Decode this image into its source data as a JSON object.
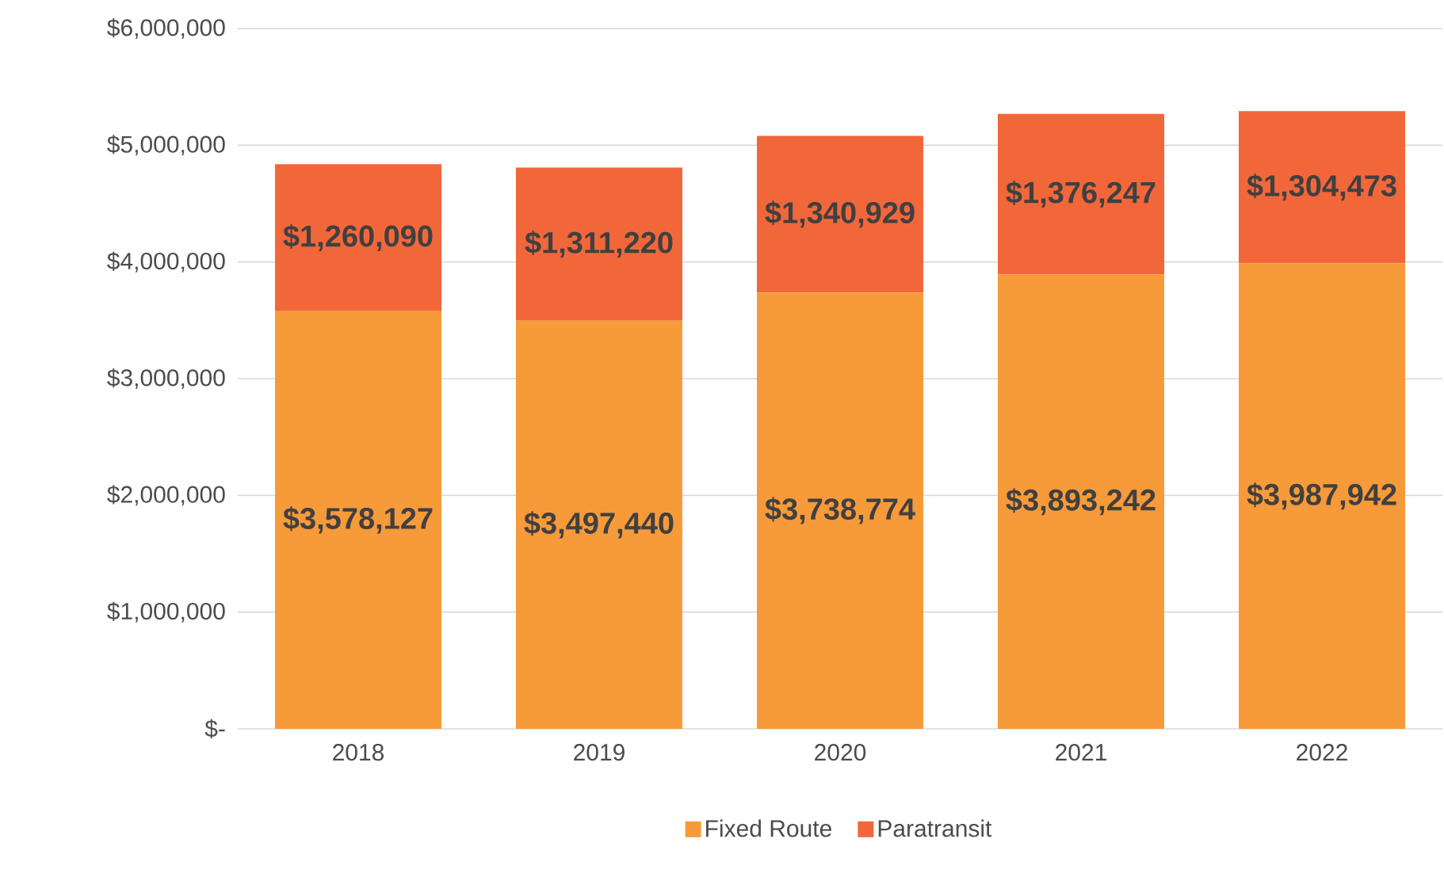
{
  "chart_data": {
    "type": "bar",
    "stacked": true,
    "categories": [
      "2018",
      "2019",
      "2020",
      "2021",
      "2022"
    ],
    "series": [
      {
        "name": "Fixed Route",
        "color": "#f79a3a",
        "values": [
          3578127,
          3497440,
          3738774,
          3893242,
          3987942
        ],
        "value_labels": [
          "$3,578,127",
          "$3,497,440",
          "$3,738,774",
          "$3,893,242",
          "$3,987,942"
        ]
      },
      {
        "name": "Paratransit",
        "color": "#f2673a",
        "values": [
          1260090,
          1311220,
          1340929,
          1376247,
          1304473
        ],
        "value_labels": [
          "$1,260,090",
          "$1,311,220",
          "$1,340,929",
          "$1,376,247",
          "$1,304,473"
        ]
      }
    ],
    "ylim": [
      0,
      6000000
    ],
    "yticks": [
      {
        "value": 0,
        "label": "$-"
      },
      {
        "value": 1000000,
        "label": "$1,000,000"
      },
      {
        "value": 2000000,
        "label": "$2,000,000"
      },
      {
        "value": 3000000,
        "label": "$3,000,000"
      },
      {
        "value": 4000000,
        "label": "$4,000,000"
      },
      {
        "value": 5000000,
        "label": "$5,000,000"
      },
      {
        "value": 6000000,
        "label": "$6,000,000"
      }
    ],
    "grid": "y",
    "legend": "bottom"
  }
}
